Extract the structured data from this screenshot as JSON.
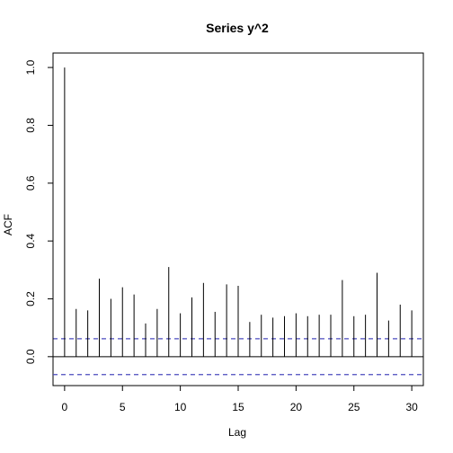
{
  "chart_data": {
    "type": "bar",
    "title": "Series  y^2",
    "xlabel": "Lag",
    "ylabel": "ACF",
    "xlim": [
      -1,
      31
    ],
    "ylim": [
      -0.1,
      1.05
    ],
    "x_ticks": [
      0,
      5,
      10,
      15,
      20,
      25,
      30
    ],
    "y_ticks": [
      0.0,
      0.2,
      0.4,
      0.6,
      0.8,
      1.0
    ],
    "x_tick_labels": [
      "0",
      "5",
      "10",
      "15",
      "20",
      "25",
      "30"
    ],
    "y_tick_labels": [
      "0.0",
      "0.2",
      "0.4",
      "0.6",
      "0.8",
      "1.0"
    ],
    "lags": [
      0,
      1,
      2,
      3,
      4,
      5,
      6,
      7,
      8,
      9,
      10,
      11,
      12,
      13,
      14,
      15,
      16,
      17,
      18,
      19,
      20,
      21,
      22,
      23,
      24,
      25,
      26,
      27,
      28,
      29,
      30
    ],
    "acf": [
      1.0,
      0.165,
      0.16,
      0.27,
      0.2,
      0.24,
      0.215,
      0.115,
      0.165,
      0.31,
      0.15,
      0.205,
      0.255,
      0.155,
      0.25,
      0.245,
      0.12,
      0.145,
      0.135,
      0.14,
      0.15,
      0.14,
      0.145,
      0.145,
      0.265,
      0.14,
      0.145,
      0.29,
      0.125,
      0.18,
      0.16
    ],
    "confidence_bound": 0.062,
    "zero_line": true,
    "grid": false,
    "colors": {
      "bars": "#000000",
      "confidence": "#4b4bbf",
      "axes": "#000000"
    }
  }
}
